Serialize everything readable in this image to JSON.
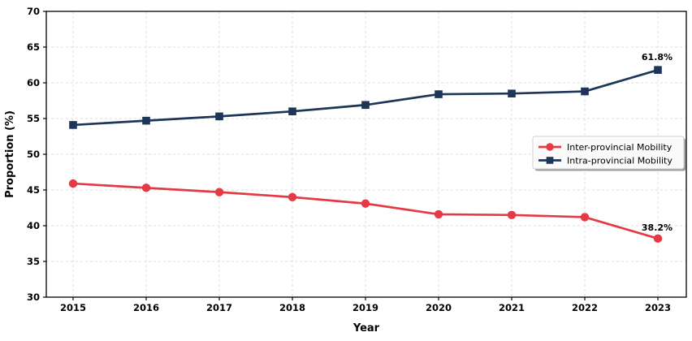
{
  "chart_data": {
    "type": "line",
    "title": "",
    "xlabel": "Year",
    "ylabel": "Proportion (%)",
    "x": [
      "2015",
      "2016",
      "2017",
      "2018",
      "2019",
      "2020",
      "2021",
      "2022",
      "2023"
    ],
    "ylim": [
      30,
      70
    ],
    "yticks": [
      30,
      35,
      40,
      45,
      50,
      55,
      60,
      65,
      70
    ],
    "grid": true,
    "grid_color": "#dcdcdc",
    "spine_color": "#000000",
    "annotation_color": "#333333",
    "legend_position": "center-right",
    "series": [
      {
        "name": "Inter-provincial Mobility",
        "color": "#e63946",
        "marker": "circle",
        "values": [
          45.9,
          45.3,
          44.7,
          44.0,
          43.1,
          41.6,
          41.5,
          41.2,
          38.2
        ],
        "end_annotation": "38.2%"
      },
      {
        "name": "Intra-provincial Mobility",
        "color": "#1d3557",
        "marker": "square",
        "values": [
          54.1,
          54.7,
          55.3,
          56.0,
          56.9,
          58.4,
          58.5,
          58.8,
          61.8
        ],
        "end_annotation": "61.8%"
      }
    ]
  }
}
